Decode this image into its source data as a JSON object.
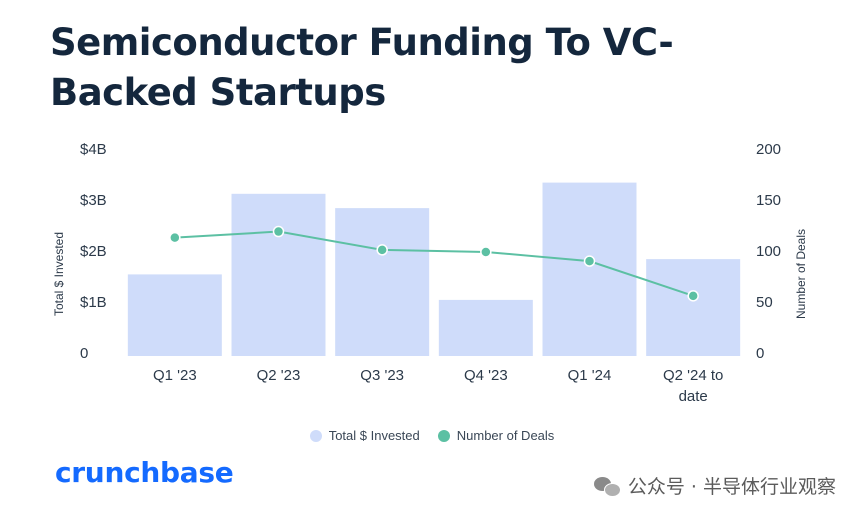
{
  "title": "Semiconductor Funding To VC-Backed Startups",
  "brand": "crunchbase",
  "watermark": "公众号 · 半导体行业观察",
  "colors": {
    "bar": "#cfdcfa",
    "line": "#5cc0a3",
    "title": "#14273d",
    "brand": "#146aff",
    "axis_text": "#2c3a4a"
  },
  "chart_data": {
    "type": "bar",
    "categories": [
      "Q1 '23",
      "Q2 '23",
      "Q3 '23",
      "Q4 '23",
      "Q1 '24",
      "Q2 '24 to date"
    ],
    "series": [
      {
        "name": "Total $ Invested",
        "type": "bar",
        "axis": "left",
        "values": [
          1.6,
          3.18,
          2.9,
          1.1,
          3.4,
          1.9
        ]
      },
      {
        "name": "Number of Deals",
        "type": "line",
        "axis": "right",
        "values": [
          116,
          122,
          104,
          102,
          93,
          59
        ]
      }
    ],
    "y_left": {
      "label": "Total $ Invested",
      "ticks": [
        "0",
        "$1B",
        "$2B",
        "$3B",
        "$4B"
      ],
      "lim": [
        0,
        4
      ]
    },
    "y_right": {
      "label": "Number of Deals",
      "ticks": [
        "0",
        "50",
        "100",
        "150",
        "200"
      ],
      "lim": [
        0,
        200
      ]
    },
    "legend": {
      "position": "bottom-center",
      "items": [
        "Total $ Invested",
        "Number of Deals"
      ]
    },
    "grid": false
  }
}
